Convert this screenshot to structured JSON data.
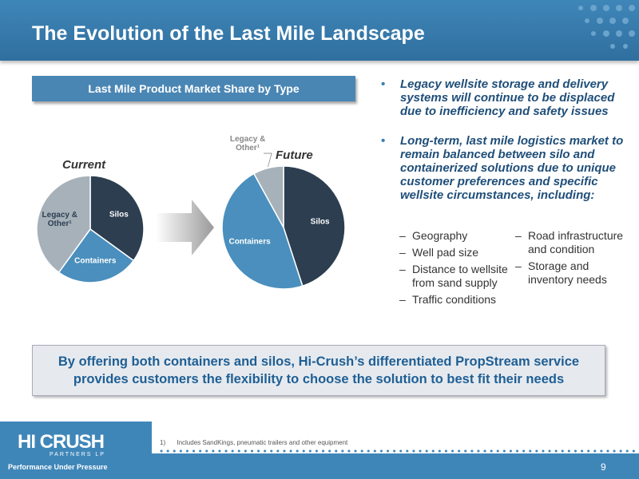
{
  "header": {
    "title": "The Evolution of the Last Mile Landscape"
  },
  "chart_panel_title": "Last Mile Product Market Share by Type",
  "chart_data": [
    {
      "type": "pie",
      "title": "Current",
      "categories": [
        "Silos",
        "Containers",
        "Legacy & Other¹"
      ],
      "values": [
        35,
        25,
        40
      ],
      "colors": [
        "#2c3e50",
        "#4a8fbd",
        "#a7b1ba"
      ]
    },
    {
      "type": "pie",
      "title": "Future",
      "categories": [
        "Silos",
        "Containers",
        "Legacy & Other¹"
      ],
      "values": [
        45,
        47,
        8
      ],
      "colors": [
        "#2c3e50",
        "#4a8fbd",
        "#a7b1ba"
      ]
    }
  ],
  "bullets": [
    "Legacy wellsite storage and delivery systems will continue to be displaced due to inefficiency and safety issues",
    "Long-term, last mile logistics market to remain balanced between silo and containerized solutions due to unique customer preferences and specific wellsite circumstances, including:"
  ],
  "sub_bullets": {
    "left": [
      "Geography",
      "Well pad size",
      "Distance to wellsite from sand supply",
      "Traffic conditions"
    ],
    "right": [
      "Road infrastructure and condition",
      "Storage and inventory needs"
    ]
  },
  "callout": "By offering both containers and silos, Hi-Crush’s differentiated PropStream service provides customers the flexibility to choose the solution to best fit their needs",
  "footnote": {
    "marker": "1)",
    "text": "Includes SandKings, pneumatic trailers and other equipment"
  },
  "logo": {
    "name": "HI CRUSH",
    "sub": "PARTNERS LP",
    "tagline": "Performance Under Pressure"
  },
  "page_number": 9
}
